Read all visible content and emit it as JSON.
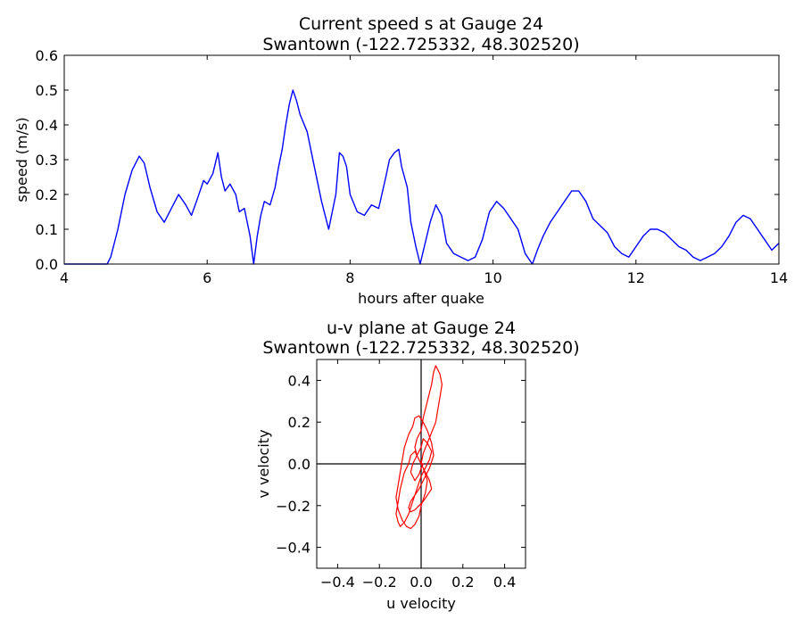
{
  "chart_data": [
    {
      "type": "line",
      "title_lines": [
        "Current speed s at Gauge 24",
        "Swantown  (-122.725332, 48.302520)"
      ],
      "xlabel": "hours after quake",
      "ylabel": "speed (m/s)",
      "xlim": [
        4,
        14
      ],
      "ylim": [
        0,
        0.6
      ],
      "xticks": [
        4,
        6,
        8,
        10,
        12,
        14
      ],
      "xtick_labels": [
        "4",
        "6",
        "8",
        "10",
        "12",
        "14"
      ],
      "yticks": [
        0.0,
        0.1,
        0.2,
        0.3,
        0.4,
        0.5,
        0.6
      ],
      "ytick_labels": [
        "0.0",
        "0.1",
        "0.2",
        "0.3",
        "0.4",
        "0.5",
        "0.6"
      ],
      "grid": false,
      "color": "#0000ff",
      "series": [
        {
          "x": [
            4.0,
            4.3,
            4.6,
            4.65,
            4.75,
            4.85,
            4.95,
            5.05,
            5.12,
            5.2,
            5.3,
            5.4,
            5.5,
            5.6,
            5.7,
            5.78,
            5.85,
            5.95,
            6.0,
            6.08,
            6.15,
            6.2,
            6.25,
            6.32,
            6.4,
            6.45,
            6.52,
            6.6,
            6.65,
            6.7,
            6.75,
            6.8,
            6.88,
            6.95,
            7.0,
            7.05,
            7.1,
            7.15,
            7.2,
            7.25,
            7.3,
            7.4,
            7.5,
            7.6,
            7.7,
            7.8,
            7.85,
            7.9,
            7.95,
            8.0,
            8.1,
            8.2,
            8.3,
            8.4,
            8.5,
            8.55,
            8.62,
            8.68,
            8.72,
            8.8,
            8.85,
            8.92,
            8.98,
            9.05,
            9.12,
            9.2,
            9.28,
            9.35,
            9.45,
            9.55,
            9.65,
            9.75,
            9.85,
            9.95,
            10.05,
            10.15,
            10.25,
            10.35,
            10.45,
            10.55,
            10.62,
            10.7,
            10.8,
            10.9,
            11.0,
            11.1,
            11.2,
            11.3,
            11.4,
            11.5,
            11.6,
            11.7,
            11.8,
            11.9,
            12.0,
            12.1,
            12.2,
            12.3,
            12.4,
            12.5,
            12.6,
            12.7,
            12.8,
            12.9,
            13.0,
            13.1,
            13.2,
            13.3,
            13.4,
            13.5,
            13.6,
            13.7,
            13.8,
            13.9,
            14.0
          ],
          "y": [
            0.0,
            0.0,
            0.0,
            0.02,
            0.1,
            0.2,
            0.27,
            0.31,
            0.29,
            0.22,
            0.15,
            0.12,
            0.16,
            0.2,
            0.17,
            0.14,
            0.18,
            0.24,
            0.23,
            0.26,
            0.32,
            0.25,
            0.21,
            0.23,
            0.2,
            0.15,
            0.16,
            0.08,
            0.0,
            0.08,
            0.14,
            0.18,
            0.17,
            0.22,
            0.28,
            0.33,
            0.4,
            0.46,
            0.5,
            0.47,
            0.43,
            0.38,
            0.28,
            0.18,
            0.1,
            0.2,
            0.32,
            0.31,
            0.28,
            0.2,
            0.15,
            0.14,
            0.17,
            0.16,
            0.25,
            0.3,
            0.32,
            0.33,
            0.28,
            0.22,
            0.12,
            0.05,
            0.0,
            0.06,
            0.12,
            0.17,
            0.14,
            0.06,
            0.03,
            0.02,
            0.01,
            0.02,
            0.07,
            0.15,
            0.18,
            0.16,
            0.13,
            0.1,
            0.03,
            0.0,
            0.04,
            0.08,
            0.12,
            0.15,
            0.18,
            0.21,
            0.21,
            0.18,
            0.13,
            0.11,
            0.09,
            0.05,
            0.03,
            0.02,
            0.05,
            0.08,
            0.1,
            0.1,
            0.09,
            0.07,
            0.05,
            0.04,
            0.02,
            0.01,
            0.02,
            0.03,
            0.05,
            0.08,
            0.12,
            0.14,
            0.13,
            0.1,
            0.07,
            0.04,
            0.06
          ]
        }
      ]
    },
    {
      "type": "line",
      "title_lines": [
        "u-v plane at Gauge 24",
        "Swantown  (-122.725332, 48.302520)"
      ],
      "xlabel": "u velocity",
      "ylabel": "v velocity",
      "xlim": [
        -0.5,
        0.5
      ],
      "ylim": [
        -0.5,
        0.5
      ],
      "xticks": [
        -0.4,
        -0.2,
        0.0,
        0.2,
        0.4
      ],
      "xtick_labels": [
        "−0.4",
        "−0.2",
        "0.0",
        "0.2",
        "0.4"
      ],
      "yticks": [
        -0.4,
        -0.2,
        0.0,
        0.2,
        0.4
      ],
      "ytick_labels": [
        "−0.4",
        "−0.2",
        "0.0",
        "0.2",
        "0.4"
      ],
      "grid": false,
      "color": "#ff0000",
      "series": [
        {
          "u": [
            0.0,
            0.01,
            0.03,
            0.05,
            0.07,
            0.08,
            0.09,
            0.1,
            0.09,
            0.07,
            0.06,
            0.05,
            0.03,
            0.01,
            0.0,
            -0.02,
            -0.03,
            -0.02,
            0.0,
            0.02,
            0.04,
            0.05,
            0.03,
            0.01,
            -0.01,
            -0.03,
            -0.05,
            -0.06,
            -0.05,
            -0.03,
            -0.01,
            0.0,
            0.02,
            0.04,
            0.06,
            0.05,
            0.03,
            0.01,
            -0.01,
            -0.03,
            -0.04,
            -0.06,
            -0.08,
            -0.09,
            -0.1,
            -0.11,
            -0.12,
            -0.11,
            -0.09,
            -0.07,
            -0.05,
            -0.03,
            -0.01,
            0.0,
            0.02,
            0.03,
            0.01,
            -0.01,
            -0.03,
            -0.05,
            -0.06,
            -0.08,
            -0.09,
            -0.1,
            -0.11,
            -0.12,
            -0.11,
            -0.1,
            -0.08,
            -0.06,
            -0.04,
            -0.02,
            0.0,
            0.02,
            0.04,
            0.05,
            0.03,
            0.01,
            0.0,
            -0.02,
            -0.04,
            -0.05,
            -0.03,
            -0.01,
            0.0,
            0.01,
            0.0
          ],
          "v": [
            0.0,
            0.05,
            0.1,
            0.15,
            0.2,
            0.26,
            0.32,
            0.38,
            0.43,
            0.47,
            0.44,
            0.38,
            0.3,
            0.22,
            0.16,
            0.12,
            0.08,
            0.04,
            0.0,
            -0.04,
            -0.08,
            -0.12,
            -0.15,
            -0.18,
            -0.2,
            -0.22,
            -0.23,
            -0.21,
            -0.18,
            -0.15,
            -0.12,
            -0.1,
            -0.06,
            -0.02,
            0.04,
            0.1,
            0.16,
            0.2,
            0.23,
            0.22,
            0.18,
            0.14,
            0.08,
            0.02,
            -0.04,
            -0.1,
            -0.16,
            -0.22,
            -0.27,
            -0.3,
            -0.31,
            -0.29,
            -0.25,
            -0.2,
            -0.14,
            -0.08,
            -0.02,
            0.02,
            0.06,
            0.04,
            0.0,
            -0.04,
            -0.08,
            -0.12,
            -0.18,
            -0.24,
            -0.28,
            -0.3,
            -0.28,
            -0.24,
            -0.18,
            -0.12,
            -0.06,
            -0.02,
            0.02,
            0.06,
            0.1,
            0.12,
            0.08,
            0.04,
            0.0,
            -0.04,
            -0.08,
            -0.05,
            -0.02,
            0.0,
            0.0
          ]
        }
      ]
    }
  ]
}
